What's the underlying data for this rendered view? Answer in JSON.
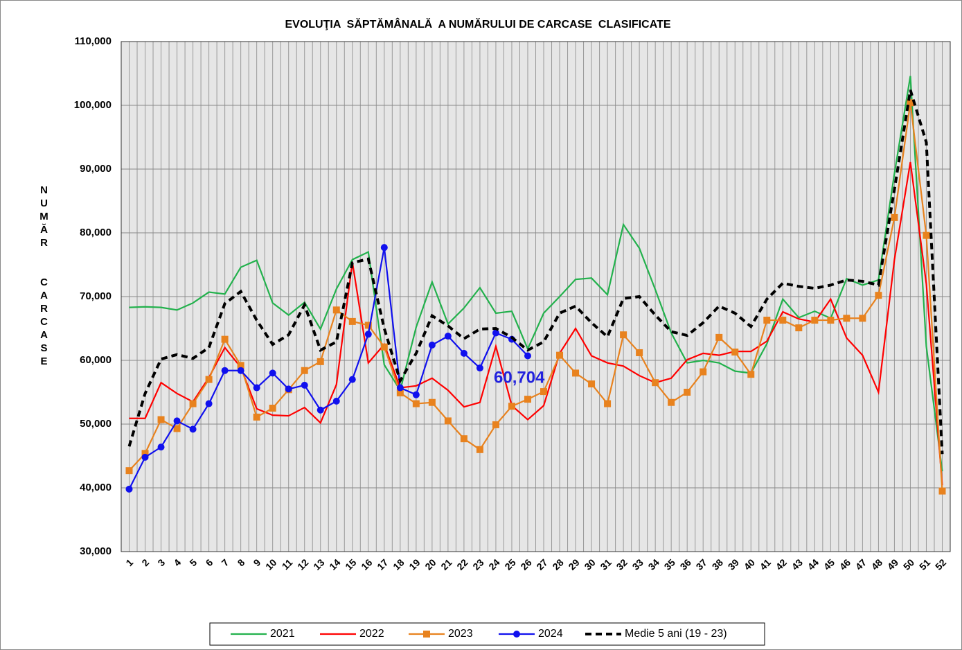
{
  "chart_data": {
    "type": "line",
    "title": "EVOLUŢIA  SĂPTĂMÂNALĂ  A NUMĂRULUI DE CARCASE  CLASIFICATE",
    "y_label": "NUMĂR  CARCASE",
    "categories": [
      "1",
      "2",
      "3",
      "4",
      "5",
      "6",
      "7",
      "8",
      "9",
      "10",
      "11",
      "12",
      "13",
      "14",
      "15",
      "16",
      "17",
      "18",
      "19",
      "20",
      "21",
      "22",
      "23",
      "24",
      "25",
      "26",
      "27",
      "28",
      "29",
      "30",
      "31",
      "32",
      "33",
      "34",
      "35",
      "36",
      "37",
      "38",
      "39",
      "40",
      "41",
      "42",
      "43",
      "44",
      "45",
      "46",
      "47",
      "48",
      "49",
      "50",
      "51",
      "52"
    ],
    "ylim": [
      30000,
      110000
    ],
    "yticks": [
      {
        "value": 30000,
        "label": "30,000"
      },
      {
        "value": 40000,
        "label": "40,000"
      },
      {
        "value": 50000,
        "label": "50,000"
      },
      {
        "value": 60000,
        "label": "60,000"
      },
      {
        "value": 70000,
        "label": "70,000"
      },
      {
        "value": 80000,
        "label": "80,000"
      },
      {
        "value": 90000,
        "label": "90,000"
      },
      {
        "value": 100000,
        "label": "100,000"
      },
      {
        "value": 110000,
        "label": "110,000"
      }
    ],
    "grid": true,
    "legend": "bottom",
    "annotation": {
      "text": "60,704",
      "color": "#2222dd"
    },
    "series": [
      {
        "name": "2021",
        "color": "#22b14c",
        "marker": "none",
        "dash": false,
        "values": [
          68300,
          68400,
          68300,
          67900,
          69000,
          70700,
          70400,
          74600,
          75700,
          69000,
          67100,
          69100,
          64900,
          71200,
          75800,
          77000,
          59300,
          55300,
          65200,
          72300,
          65700,
          68200,
          71400,
          67400,
          67700,
          61800,
          67400,
          70000,
          72700,
          72900,
          70300,
          81300,
          77600,
          71100,
          64300,
          59600,
          60000,
          59600,
          58300,
          58000,
          62600,
          69600,
          66700,
          67700,
          66600,
          72800,
          71800,
          72600,
          89300,
          104600,
          62200,
          42600
        ]
      },
      {
        "name": "2022",
        "color": "#ff0000",
        "marker": "none",
        "dash": false,
        "values": [
          50900,
          50900,
          56500,
          54800,
          53500,
          57300,
          62000,
          58900,
          52400,
          51400,
          51300,
          52600,
          50200,
          56200,
          75400,
          59600,
          62500,
          55700,
          56000,
          57200,
          55300,
          52700,
          53400,
          62200,
          52900,
          50700,
          52900,
          61100,
          65000,
          60700,
          59600,
          59100,
          57600,
          56500,
          57200,
          60100,
          61100,
          60800,
          61400,
          61400,
          63000,
          67600,
          66500,
          66000,
          69600,
          63500,
          60800,
          55000,
          75800,
          91100,
          72000,
          40400
        ]
      },
      {
        "name": "2023",
        "color": "#e8821e",
        "marker": "square",
        "dash": false,
        "values": [
          42700,
          45400,
          50700,
          49300,
          53200,
          57000,
          63300,
          59200,
          51100,
          52500,
          55400,
          58400,
          59800,
          67900,
          66100,
          65500,
          62100,
          54900,
          53200,
          53400,
          50500,
          47700,
          46000,
          49900,
          52800,
          53900,
          55100,
          60800,
          58000,
          56300,
          53200,
          64000,
          61200,
          56500,
          53400,
          55000,
          58200,
          63600,
          61300,
          57800,
          66300,
          66300,
          65100,
          66300,
          66300,
          66600,
          66600,
          70200,
          82400,
          100400,
          79600,
          39500
        ]
      },
      {
        "name": "2024",
        "color": "#1010ee",
        "marker": "circle",
        "dash": false,
        "values": [
          39800,
          44800,
          46400,
          50500,
          49200,
          53200,
          58400,
          58400,
          55700,
          58000,
          55500,
          56100,
          52200,
          53600,
          57000,
          64100,
          77700,
          55700,
          54600,
          62400,
          63800,
          61100,
          58800,
          64300,
          63300,
          60704,
          null,
          null,
          null,
          null,
          null,
          null,
          null,
          null,
          null,
          null,
          null,
          null,
          null,
          null,
          null,
          null,
          null,
          null,
          null,
          null,
          null,
          null,
          null,
          null,
          null,
          null
        ]
      },
      {
        "name": "Medie 5 ani (19 - 23)",
        "color": "#000000",
        "marker": "none",
        "dash": true,
        "values": [
          46500,
          54800,
          60200,
          60900,
          60300,
          62000,
          68900,
          70800,
          66300,
          62500,
          64000,
          68700,
          61600,
          62900,
          75300,
          75900,
          65000,
          56800,
          61100,
          67000,
          65400,
          63400,
          64900,
          65000,
          63600,
          61600,
          62900,
          67400,
          68500,
          65900,
          63700,
          69700,
          70000,
          67100,
          64500,
          63900,
          65900,
          68500,
          67400,
          65300,
          69600,
          72100,
          71600,
          71300,
          71800,
          72600,
          72400,
          71800,
          86800,
          102400,
          94200,
          45300
        ]
      }
    ]
  }
}
